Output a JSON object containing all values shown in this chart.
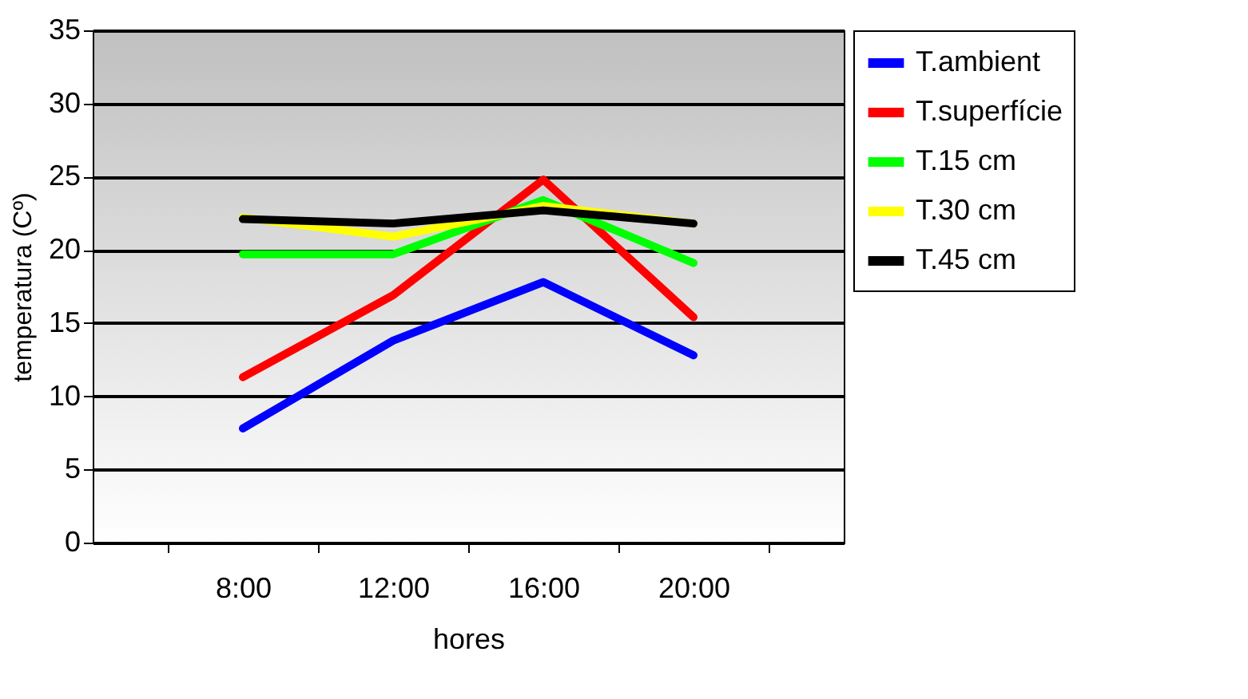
{
  "chart_data": {
    "type": "line",
    "xlabel": "hores",
    "ylabel": "temperatura (Cº)",
    "categories": [
      "8:00",
      "12:00",
      "16:00",
      "20:00"
    ],
    "series": [
      {
        "name": "T.ambient",
        "color": "#0000ff",
        "values": [
          7.8,
          13.8,
          17.8,
          12.8
        ]
      },
      {
        "name": "T.superfície",
        "color": "#ff0000",
        "values": [
          11.3,
          16.9,
          24.8,
          15.4
        ]
      },
      {
        "name": "T.15 cm",
        "color": "#00ff00",
        "values": [
          19.7,
          19.7,
          23.4,
          19.1
        ]
      },
      {
        "name": "T.30 cm",
        "color": "#ffff00",
        "values": [
          22.2,
          20.9,
          23.0,
          21.8
        ]
      },
      {
        "name": "T.45 cm",
        "color": "#000000",
        "values": [
          22.1,
          21.8,
          22.7,
          21.8
        ]
      }
    ],
    "ylim": [
      0,
      35
    ],
    "yticks": [
      0,
      5,
      10,
      15,
      20,
      25,
      30,
      35
    ],
    "grid": "y",
    "legend": "right",
    "marker": "none",
    "line_style": "solid"
  }
}
